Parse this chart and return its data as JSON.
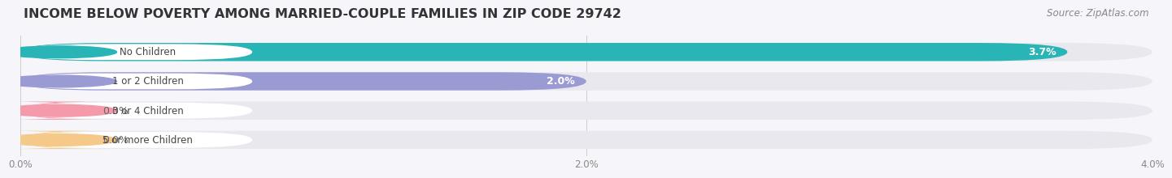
{
  "title": "INCOME BELOW POVERTY AMONG MARRIED-COUPLE FAMILIES IN ZIP CODE 29742",
  "source": "Source: ZipAtlas.com",
  "categories": [
    "No Children",
    "1 or 2 Children",
    "3 or 4 Children",
    "5 or more Children"
  ],
  "values": [
    3.7,
    2.0,
    0.0,
    0.0
  ],
  "bar_colors": [
    "#29b4b6",
    "#9b9bd4",
    "#f49aaa",
    "#f5c98a"
  ],
  "track_color": "#e8e8ee",
  "xlim": [
    0,
    4.0
  ],
  "xticks": [
    0.0,
    2.0,
    4.0
  ],
  "xtick_labels": [
    "0.0%",
    "2.0%",
    "4.0%"
  ],
  "title_fontsize": 11.5,
  "source_fontsize": 8.5,
  "bar_label_fontsize": 9,
  "category_fontsize": 8.5,
  "tick_fontsize": 8.5,
  "background_color": "#f5f5fa",
  "bar_height": 0.62,
  "value_label_color_inside": "#ffffff",
  "value_label_color_outside": "#666666"
}
